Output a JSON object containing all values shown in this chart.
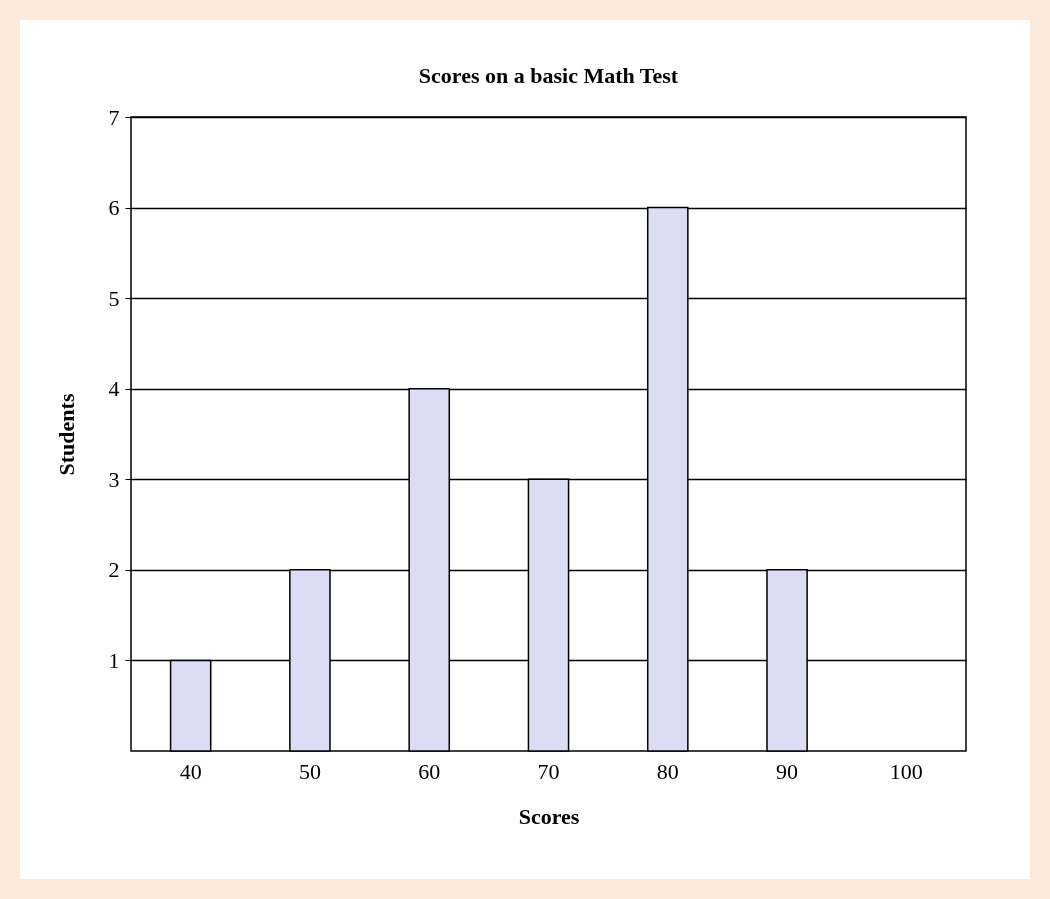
{
  "chart_data": {
    "type": "bar",
    "title": "Scores on a basic Math Test",
    "xlabel": "Scores",
    "ylabel": "Students",
    "categories": [
      "40",
      "50",
      "60",
      "70",
      "80",
      "90",
      "100"
    ],
    "values": [
      1,
      2,
      4,
      3,
      6,
      2,
      0
    ],
    "color": "#dcdcf5",
    "ylim": [
      0,
      7
    ],
    "yticks": [
      1,
      2,
      3,
      4,
      5,
      6,
      7
    ],
    "grid": "y"
  }
}
